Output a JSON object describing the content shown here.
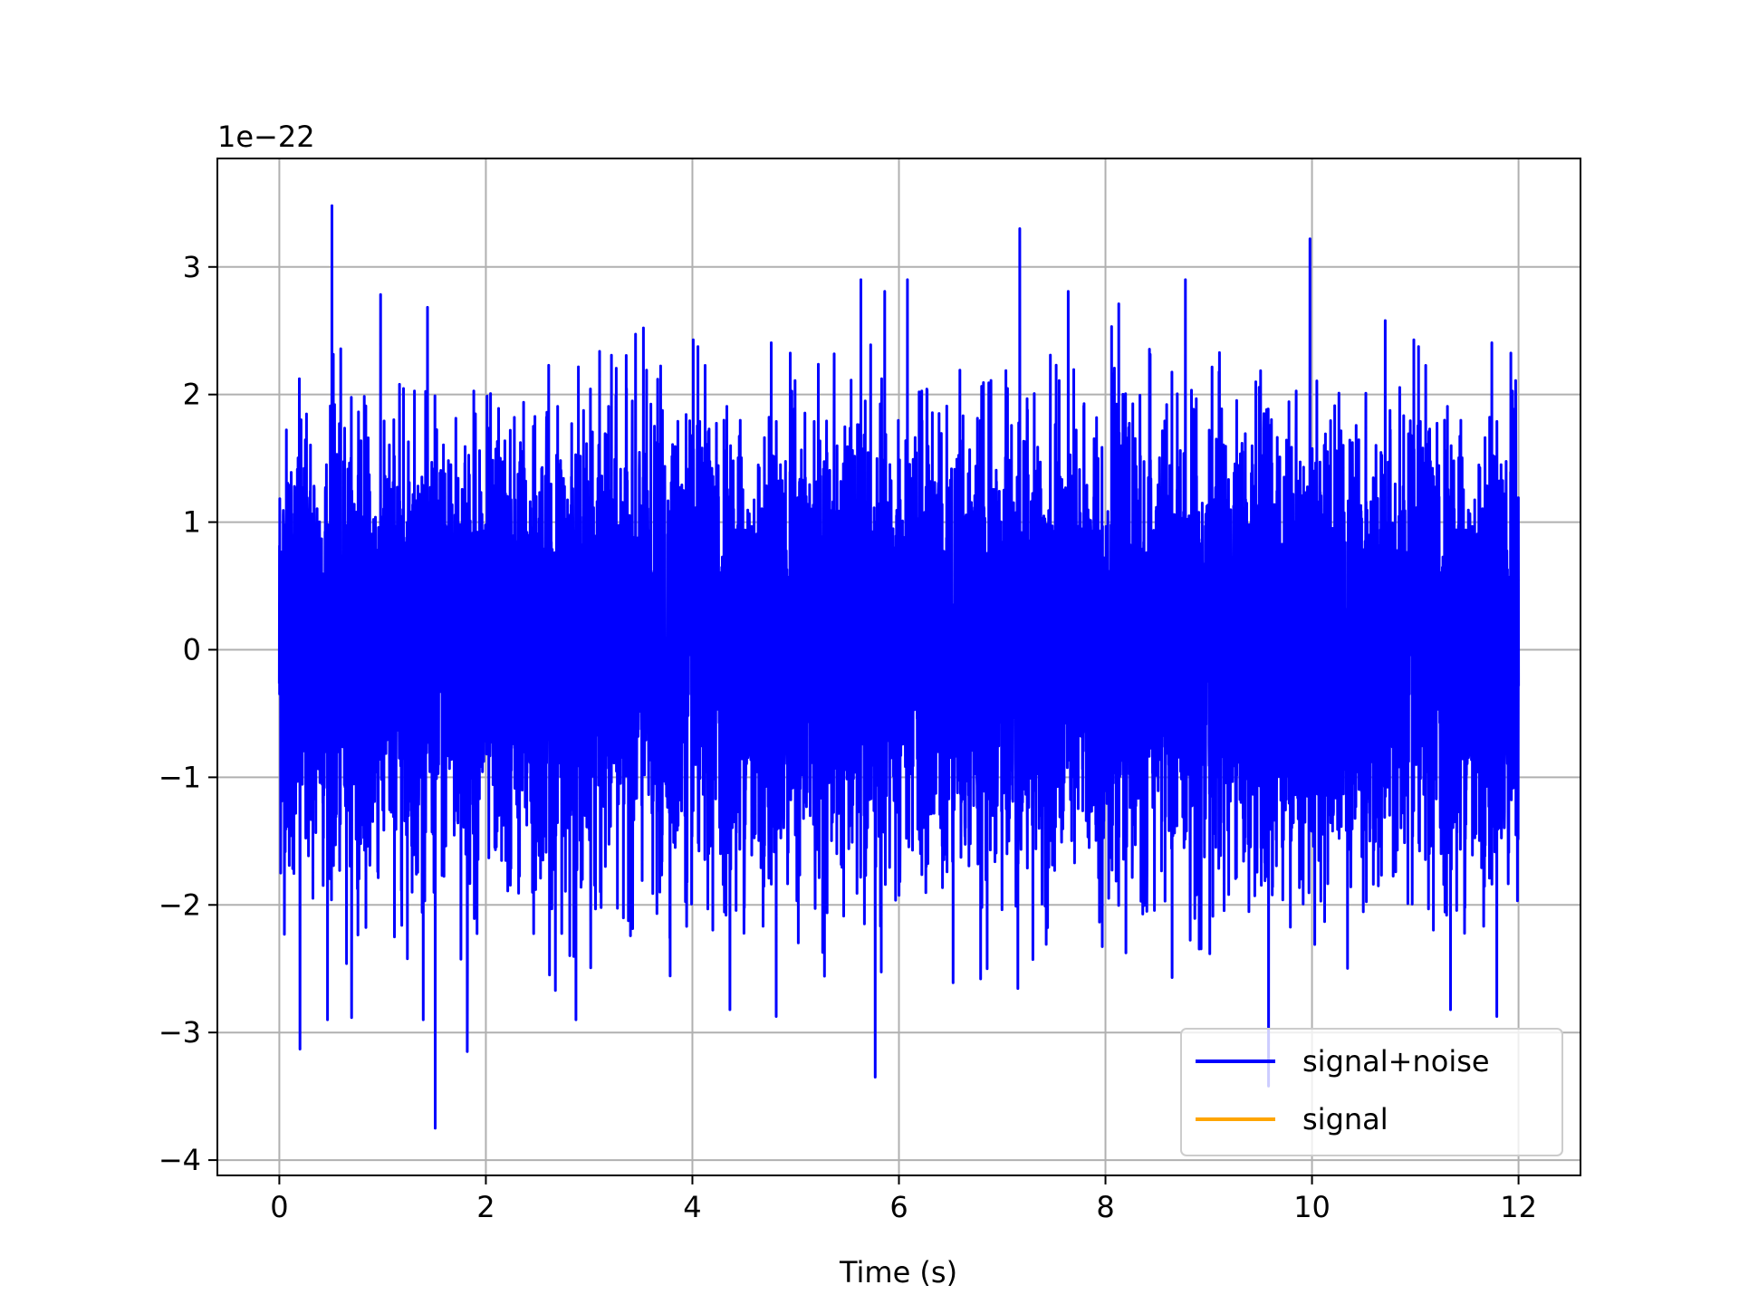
{
  "chart_data": {
    "type": "line",
    "title": "",
    "xlabel": "Time (s)",
    "ylabel": "",
    "y_offset_label": "1e−22",
    "xlim": [
      -0.6,
      12.6
    ],
    "ylim": [
      -4.12,
      3.85
    ],
    "xticks": [
      0,
      2,
      4,
      6,
      8,
      10,
      12
    ],
    "xtick_labels": [
      "0",
      "2",
      "4",
      "6",
      "8",
      "10",
      "12"
    ],
    "yticks": [
      -4,
      -3,
      -2,
      -1,
      0,
      1,
      2,
      3
    ],
    "ytick_labels": [
      "−4",
      "−3",
      "−2",
      "−1",
      "0",
      "1",
      "2",
      "3"
    ],
    "grid": true,
    "legend_position": "lower-right",
    "series": [
      {
        "name": "signal+noise",
        "color": "#0000ff",
        "description_values": "dense noise, approx. Gaussian, sigma ~0.85, range approx. -3.75 to 3.48",
        "x_range": [
          0,
          12
        ],
        "extrema": [
          {
            "x": 0.51,
            "y": 3.48
          },
          {
            "x": 7.17,
            "y": 3.3
          },
          {
            "x": 9.98,
            "y": 3.22
          },
          {
            "x": 1.51,
            "y": -3.75
          },
          {
            "x": 5.77,
            "y": -3.35
          },
          {
            "x": 9.58,
            "y": -3.42
          },
          {
            "x": 0.2,
            "y": -3.13
          },
          {
            "x": 1.82,
            "y": -3.15
          }
        ]
      },
      {
        "name": "signal",
        "color": "#ffa500",
        "x_range": [
          0,
          12
        ],
        "values_note": "constant near 0, hidden beneath signal+noise"
      }
    ]
  }
}
